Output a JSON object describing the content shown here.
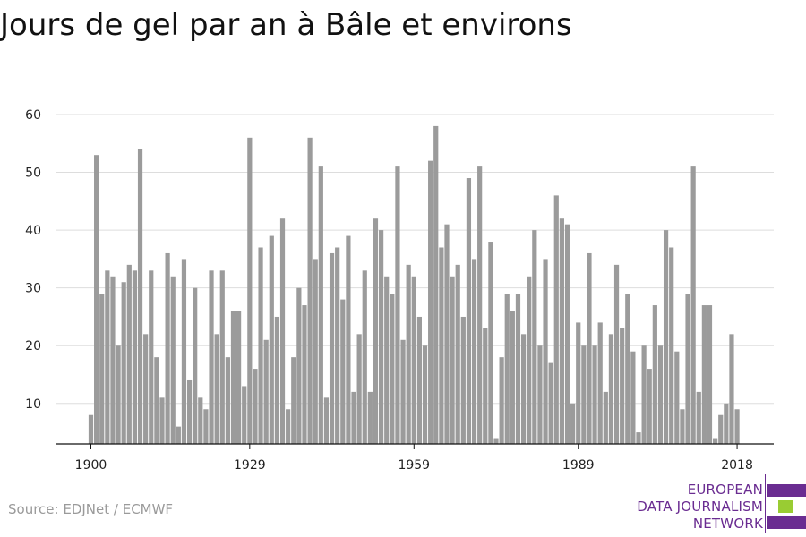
{
  "chart_data": {
    "type": "bar",
    "title": "Jours de gel par an à Bâle et environs",
    "xlabel": "",
    "ylabel": "",
    "x_start": 1900,
    "x_tick_labels": [
      "1900",
      "1929",
      "1959",
      "1989",
      "2018"
    ],
    "x_ticks": [
      1900,
      1929,
      1959,
      1989,
      2018
    ],
    "y_ticks": [
      10,
      20,
      30,
      40,
      50,
      60
    ],
    "ylim": [
      3,
      62
    ],
    "grid": "horizontal",
    "values": [
      8,
      53,
      29,
      33,
      32,
      20,
      31,
      34,
      33,
      54,
      22,
      33,
      18,
      11,
      36,
      32,
      6,
      35,
      14,
      30,
      11,
      9,
      33,
      22,
      33,
      18,
      26,
      26,
      13,
      56,
      16,
      37,
      21,
      39,
      25,
      42,
      9,
      18,
      30,
      27,
      56,
      35,
      51,
      11,
      36,
      37,
      28,
      39,
      12,
      22,
      33,
      12,
      42,
      40,
      32,
      29,
      51,
      21,
      34,
      32,
      25,
      20,
      52,
      58,
      37,
      41,
      32,
      34,
      25,
      49,
      35,
      51,
      23,
      38,
      4,
      18,
      29,
      26,
      29,
      22,
      32,
      40,
      20,
      35,
      17,
      46,
      42,
      41,
      10,
      24,
      20,
      36,
      20,
      24,
      12,
      22,
      34,
      23,
      29,
      19,
      5,
      20,
      16,
      27,
      20,
      40,
      37,
      19,
      9,
      29,
      51,
      12,
      27,
      27,
      4,
      8,
      10,
      22,
      9
    ]
  },
  "source": "Source: EDJNet / ECMWF",
  "logo": {
    "line1": "EUROPEAN",
    "line2": "DATA JOURNALISM",
    "line3": "NETWORK",
    "purple": "#6a2c91",
    "green": "#99cc33"
  },
  "colors": {
    "bar": "#9b9b9b",
    "grid": "#dddddd",
    "axis": "#111111"
  }
}
